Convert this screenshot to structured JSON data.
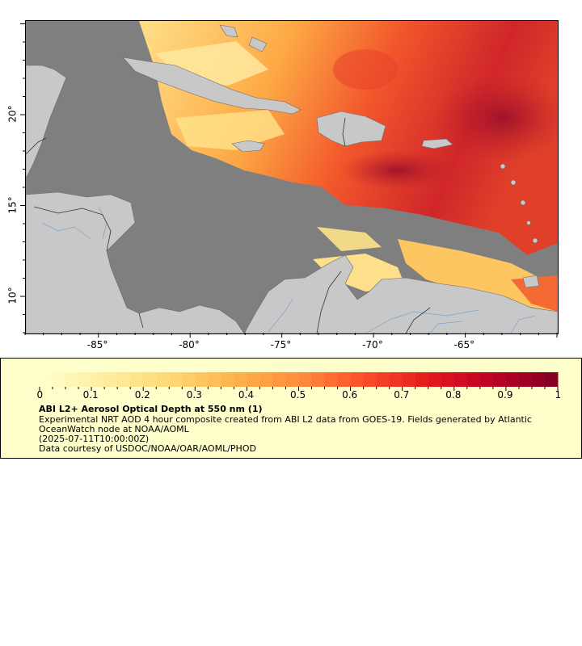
{
  "map": {
    "lon_range": [
      -89,
      -60
    ],
    "lat_range": [
      8,
      25.2
    ],
    "xticks": [
      {
        "lon": -85,
        "label": "-85°"
      },
      {
        "lon": -80,
        "label": "-80°"
      },
      {
        "lon": -75,
        "label": "-75°"
      },
      {
        "lon": -70,
        "label": "-70°"
      },
      {
        "lon": -65,
        "label": "-65°"
      }
    ],
    "yticks": [
      {
        "lat": 10,
        "label": "10°"
      },
      {
        "lat": 15,
        "label": "15°"
      },
      {
        "lat": 20,
        "label": "20°"
      }
    ],
    "colors": {
      "ocean": "#7f7f7f",
      "land": "#c8c8c8",
      "rivers": "#6699cc",
      "borders": "#555555"
    }
  },
  "legend": {
    "colorbar_ticks": [
      "0",
      "0.1",
      "0.2",
      "0.3",
      "0.4",
      "0.5",
      "0.6",
      "0.7",
      "0.8",
      "0.9",
      "1"
    ],
    "colorbar_colors": [
      "#ffffcc",
      "#ffeda0",
      "#fed976",
      "#feb24c",
      "#fd8d3c",
      "#fc4e2a",
      "#e31a1c",
      "#bd0026",
      "#800026"
    ],
    "title": "ABI L2+ Aerosol Optical Depth at 550 nm (1)",
    "description_line1": "Experimental NRT AOD 4 hour composite created from ABI L2 data from GOES-19. Fields generated by Atlantic",
    "description_line2": "OceanWatch node at NOAA/AOML",
    "date": "(2025-07-11T10:00:00Z)",
    "credit": "Data courtesy of USDOC/NOAA/OAR/AOML/PHOD"
  }
}
